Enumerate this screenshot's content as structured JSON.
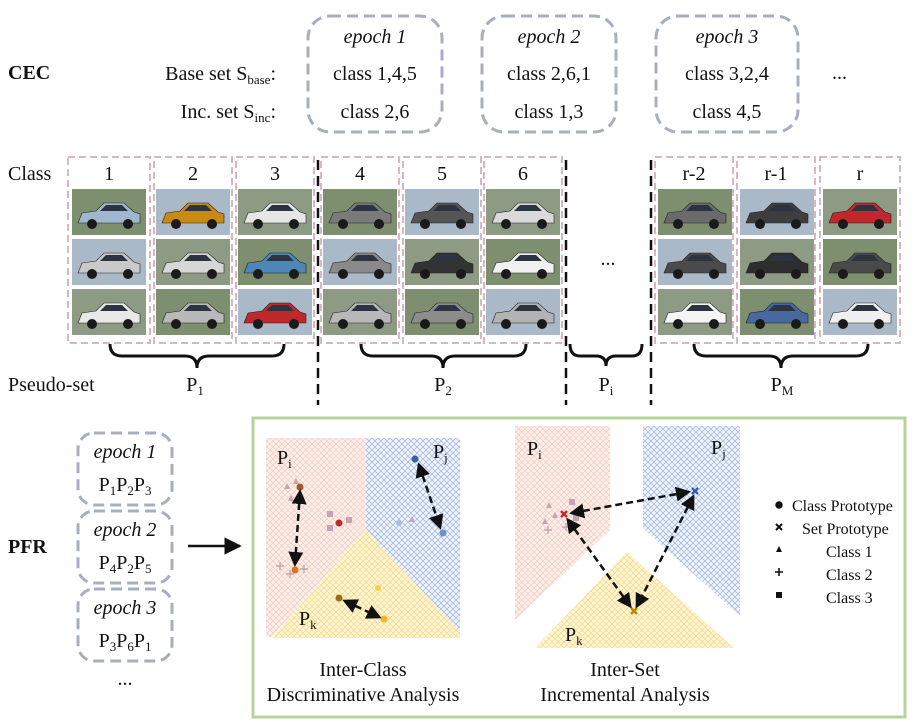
{
  "cec": {
    "label": "CEC",
    "base_set": {
      "prefix": "Base set S",
      "sub": "base",
      "suffix": ":"
    },
    "inc_set": {
      "prefix": "Inc. set S",
      "sub": "inc",
      "suffix": ":"
    },
    "epochs": [
      {
        "title": "epoch 1",
        "base": "class 1,4,5",
        "inc": "class 2,6"
      },
      {
        "title": "epoch 2",
        "base": "class 2,6,1",
        "inc": "class 1,3"
      },
      {
        "title": "epoch 3",
        "base": "class 3,2,4",
        "inc": "class 4,5"
      }
    ],
    "more": "..."
  },
  "classes": {
    "label": "Class",
    "columns": [
      "1",
      "2",
      "3",
      "4",
      "5",
      "6",
      "r-2",
      "r-1",
      "r"
    ],
    "ellipsis": "..."
  },
  "pseudo_set": {
    "label": "Pseudo-set",
    "groups": [
      {
        "base": "P",
        "sub": "1"
      },
      {
        "base": "P",
        "sub": "2"
      },
      {
        "base": "P",
        "sub": "i"
      },
      {
        "base": "P",
        "sub": "M"
      }
    ]
  },
  "pfr": {
    "label": "PFR",
    "epochs": [
      {
        "title": "epoch 1",
        "sets": [
          [
            "P",
            "1"
          ],
          [
            "P",
            "2"
          ],
          [
            "P",
            "3"
          ]
        ]
      },
      {
        "title": "epoch 2",
        "sets": [
          [
            "P",
            "4"
          ],
          [
            "P",
            "2"
          ],
          [
            "P",
            "5"
          ]
        ]
      },
      {
        "title": "epoch 3",
        "sets": [
          [
            "P",
            "3"
          ],
          [
            "P",
            "6"
          ],
          [
            "P",
            "1"
          ]
        ]
      }
    ],
    "more": "..."
  },
  "panels": {
    "inter_class": {
      "regions": {
        "pi": "i",
        "pj": "j",
        "pk": "k"
      },
      "caption_line1": "Inter-Class",
      "caption_line2": "Discriminative Analysis"
    },
    "inter_set": {
      "regions": {
        "pi": "i",
        "pj": "j",
        "pk": "k"
      },
      "caption_line1": "Inter-Set",
      "caption_line2": "Incremental Analysis"
    }
  },
  "legend": {
    "items": [
      {
        "symbol": "circle",
        "label": "Class Prototype"
      },
      {
        "symbol": "cross",
        "label": "Set Prototype"
      },
      {
        "symbol": "triangle",
        "label": "Class 1"
      },
      {
        "symbol": "star",
        "label": "Class 2"
      },
      {
        "symbol": "square",
        "label": "Class 3"
      }
    ]
  },
  "colors": {
    "dashed_box": "#a7afbf",
    "class_box": "#d8b6c2",
    "panel_border": "#b7d39a",
    "region_pink": "#f2c9bf",
    "region_blue": "#9bb6e0",
    "region_yellow": "#f7df8a",
    "point_orange": "#d9771e",
    "point_blue": "#4f74c2",
    "point_purple": "#b5879a"
  }
}
